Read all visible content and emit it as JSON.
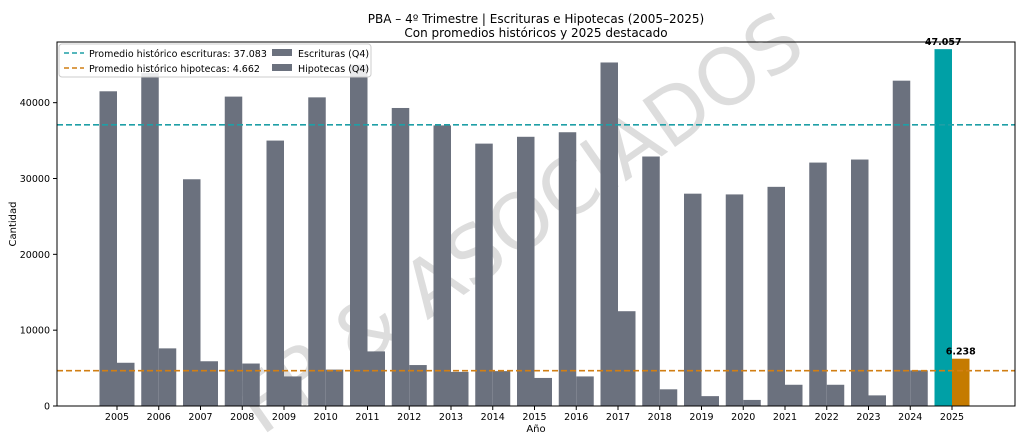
{
  "chart_data": {
    "type": "bar",
    "title": "PBA – 4º Trimestre | Escrituras e Hipotecas (2005–2025)",
    "subtitle": "Con promedios históricos y 2025 destacado",
    "xlabel": "Año",
    "ylabel": "Cantidad",
    "ylim": [
      0,
      48000
    ],
    "yticks": [
      0,
      10000,
      20000,
      30000,
      40000
    ],
    "categories": [
      "2005",
      "2006",
      "2007",
      "2008",
      "2009",
      "2010",
      "2011",
      "2012",
      "2013",
      "2014",
      "2015",
      "2016",
      "2017",
      "2018",
      "2019",
      "2020",
      "2021",
      "2022",
      "2023",
      "2024",
      "2025"
    ],
    "series": [
      {
        "name": "Escrituras (Q4)",
        "color": "#6b717e",
        "highlight_color": "#00a0a6",
        "values": [
          41500,
          43900,
          29900,
          40800,
          35000,
          40700,
          45000,
          39300,
          37000,
          34600,
          35500,
          36100,
          45300,
          32900,
          28000,
          27900,
          28900,
          32100,
          32500,
          42900,
          47057
        ]
      },
      {
        "name": "Hipotecas (Q4)",
        "color": "#6b717e",
        "highlight_color": "#c57b00",
        "values": [
          5700,
          7600,
          5900,
          5600,
          3900,
          4800,
          7200,
          5400,
          4500,
          4600,
          3700,
          3900,
          12500,
          2200,
          1300,
          800,
          2800,
          2800,
          1400,
          4700,
          6238
        ]
      }
    ],
    "highlight_index": 20,
    "annotations": [
      {
        "series": 0,
        "index": 20,
        "text": "47.057"
      },
      {
        "series": 1,
        "index": 20,
        "text": "6.238"
      }
    ],
    "reference_lines": [
      {
        "label": "Promedio histórico escrituras: 37.083",
        "value": 37083,
        "color": "#1f9fa6"
      },
      {
        "label": "Promedio histórico hipotecas: 4.662",
        "value": 4662,
        "color": "#d17f14"
      }
    ],
    "legend_position": "top-left",
    "watermark": "FP & ASOCIADOS",
    "grid": false
  }
}
